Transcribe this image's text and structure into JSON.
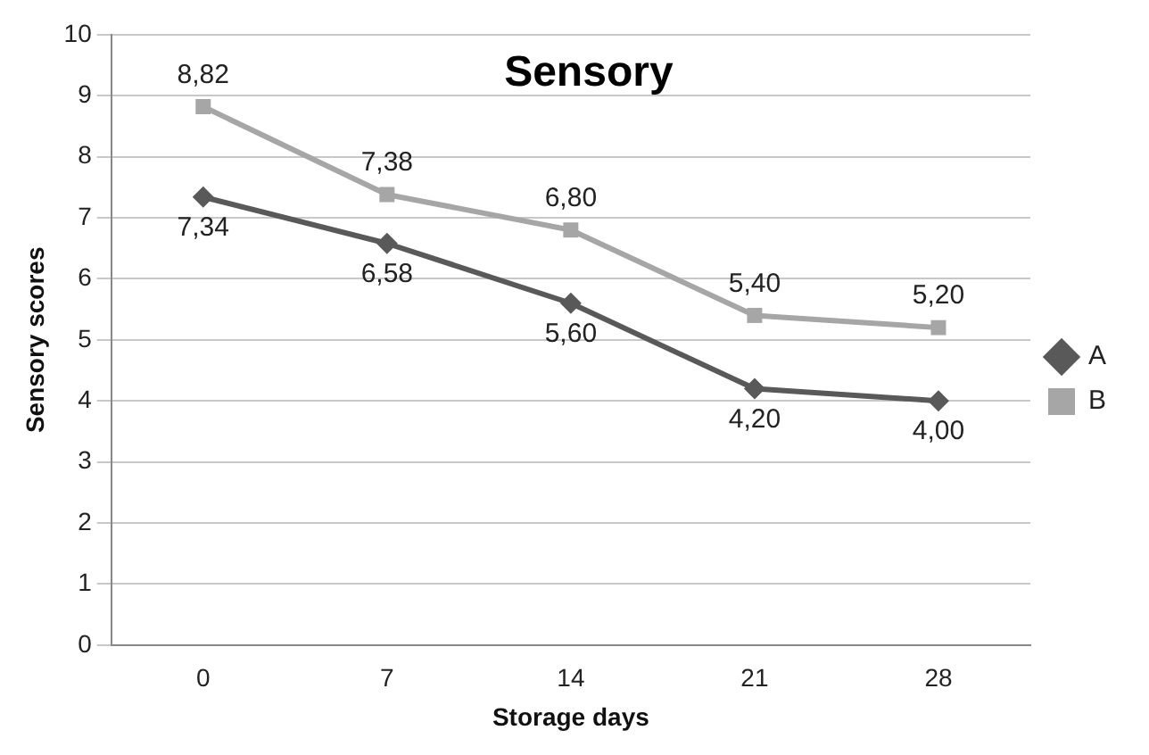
{
  "chart_data": {
    "type": "line",
    "title": "Sensory",
    "xlabel": "Storage days",
    "ylabel": "Sensory scores",
    "categories": [
      "0",
      "7",
      "14",
      "21",
      "28"
    ],
    "series": [
      {
        "name": "A",
        "color": "#595959",
        "marker": "diamond",
        "values": [
          7.34,
          6.58,
          5.6,
          4.2,
          4.0
        ],
        "value_labels": [
          "7,34",
          "6,58",
          "5,60",
          "4,20",
          "4,00"
        ]
      },
      {
        "name": "B",
        "color": "#a6a6a6",
        "marker": "square",
        "values": [
          8.82,
          7.38,
          6.8,
          5.4,
          5.2
        ],
        "value_labels": [
          "8,82",
          "7,38",
          "6,80",
          "5,40",
          "5,20"
        ]
      }
    ],
    "ylim": [
      0,
      10
    ],
    "yticks": [
      0,
      1,
      2,
      3,
      4,
      5,
      6,
      7,
      8,
      9,
      10
    ],
    "grid": "y",
    "legend": "right",
    "line_style": "solid"
  }
}
